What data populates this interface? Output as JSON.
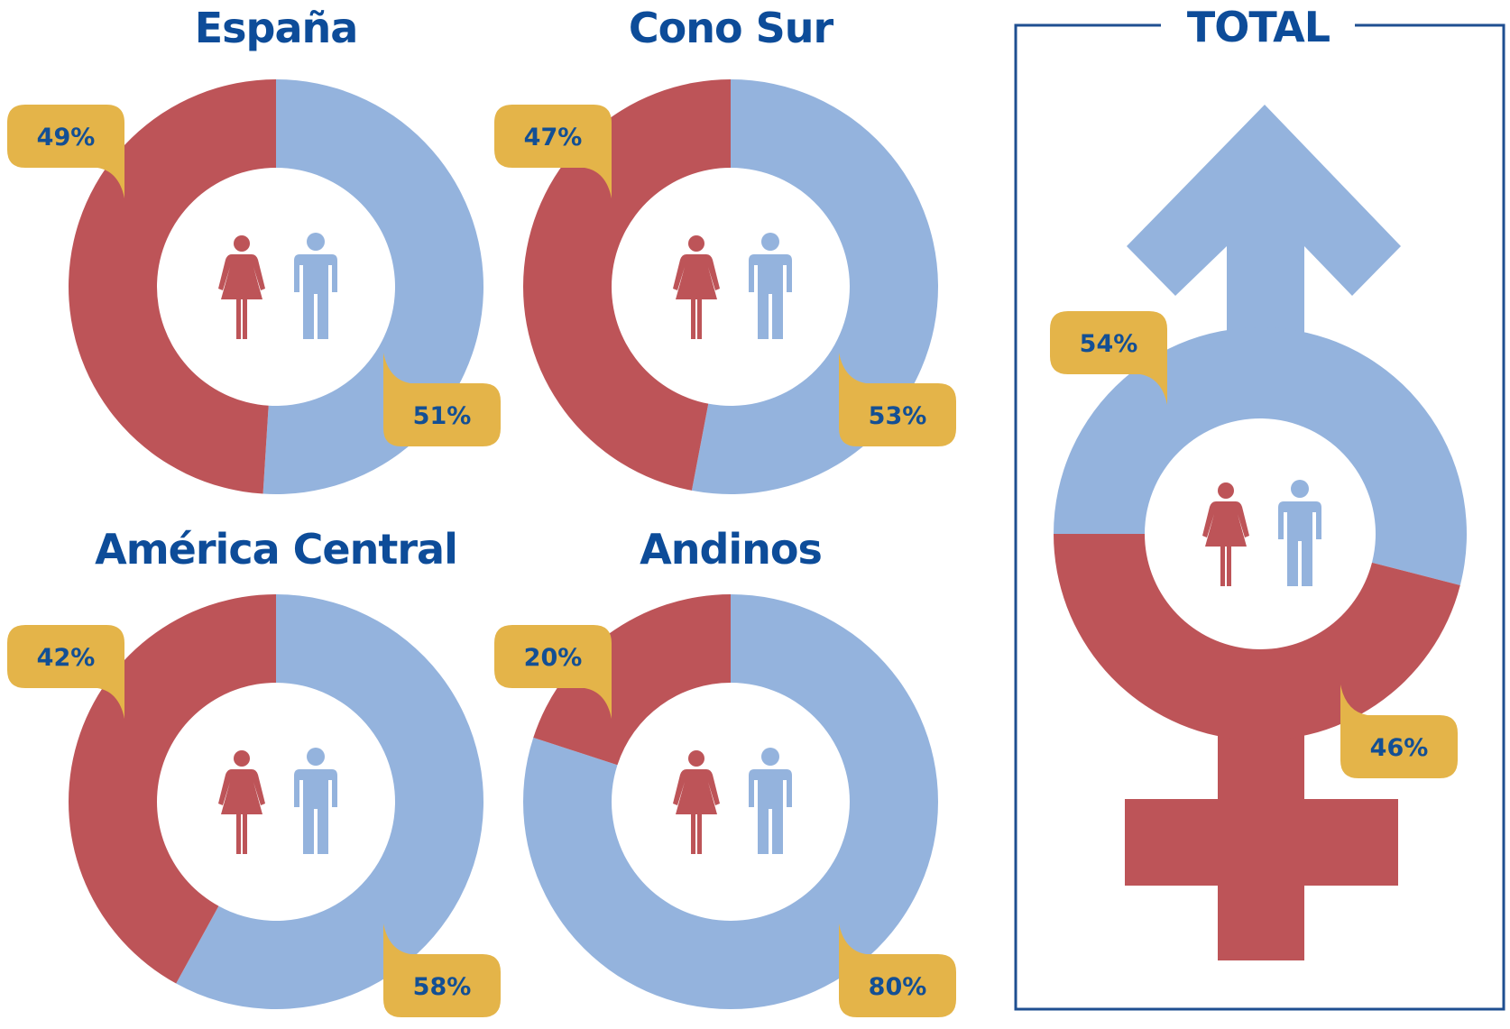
{
  "colors": {
    "female": "#bd5458",
    "male": "#94b3dd",
    "badge": "#e4b449",
    "badge_text": "#134f94",
    "title": "#0d4c99",
    "frame": "#1f4f91"
  },
  "icons": [
    "woman-icon",
    "man-icon",
    "female-symbol-icon",
    "male-symbol-icon"
  ],
  "chart_data": [
    {
      "type": "pie",
      "title": "España",
      "categories": [
        "female",
        "male"
      ],
      "values": [
        49,
        51
      ],
      "labels": [
        "49%",
        "51%"
      ]
    },
    {
      "type": "pie",
      "title": "Cono Sur",
      "categories": [
        "female",
        "male"
      ],
      "values": [
        47,
        53
      ],
      "labels": [
        "47%",
        "53%"
      ]
    },
    {
      "type": "pie",
      "title": "América Central",
      "categories": [
        "female",
        "male"
      ],
      "values": [
        42,
        58
      ],
      "labels": [
        "42%",
        "58%"
      ]
    },
    {
      "type": "pie",
      "title": "Andinos",
      "categories": [
        "female",
        "male"
      ],
      "values": [
        20,
        80
      ],
      "labels": [
        "20%",
        "80%"
      ]
    },
    {
      "type": "pie",
      "title": "TOTAL",
      "categories": [
        "male",
        "female"
      ],
      "values": [
        54,
        46
      ],
      "labels": [
        "54%",
        "46%"
      ]
    }
  ]
}
